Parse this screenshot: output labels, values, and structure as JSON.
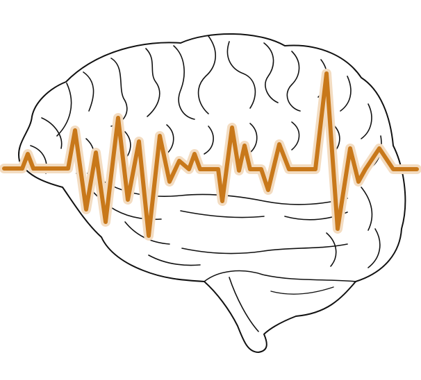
{
  "illustration": {
    "subject": "brain-with-heartbeat-line",
    "icon": "brain-icon",
    "wave_icon": "pulse-wave-icon",
    "colors": {
      "outline": "#111111",
      "fill": "#ffffff",
      "wave": "#c8781a",
      "wave_glow": "#f3dcc1",
      "background": "#ffffff"
    }
  }
}
